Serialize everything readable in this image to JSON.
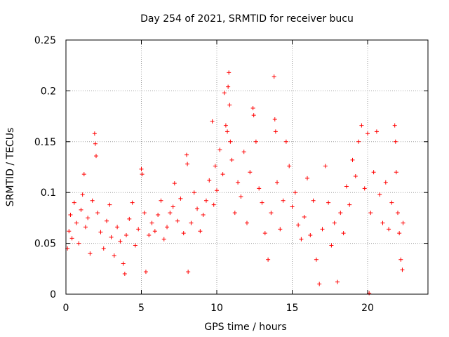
{
  "chart_data": {
    "type": "scatter",
    "title": "Day 254 of 2021, SRMTID for receiver bucu",
    "xlabel": "GPS time / hours",
    "ylabel": "SRMTID / TECUs",
    "xlim": [
      0,
      24
    ],
    "ylim": [
      0,
      0.25
    ],
    "xticks": [
      "0",
      "5",
      "10",
      "15",
      "20"
    ],
    "yticks": [
      "0",
      "0.05",
      "0.1",
      "0.15",
      "0.2",
      "0.25"
    ],
    "grid": true,
    "marker": "+",
    "color": "#ff0000",
    "series": [
      {
        "name": "SRMTID",
        "x_range": [
          0.0,
          22.4
        ],
        "points": [
          [
            0.1,
            0.045
          ],
          [
            0.2,
            0.062
          ],
          [
            0.3,
            0.078
          ],
          [
            0.4,
            0.055
          ],
          [
            0.55,
            0.09
          ],
          [
            0.7,
            0.07
          ],
          [
            0.85,
            0.05
          ],
          [
            1.0,
            0.083
          ],
          [
            1.1,
            0.098
          ],
          [
            1.2,
            0.118
          ],
          [
            1.3,
            0.066
          ],
          [
            1.45,
            0.075
          ],
          [
            1.6,
            0.04
          ],
          [
            1.75,
            0.092
          ],
          [
            1.9,
            0.158
          ],
          [
            1.95,
            0.148
          ],
          [
            2.0,
            0.136
          ],
          [
            2.1,
            0.08
          ],
          [
            2.3,
            0.061
          ],
          [
            2.5,
            0.045
          ],
          [
            2.7,
            0.072
          ],
          [
            2.9,
            0.088
          ],
          [
            3.0,
            0.056
          ],
          [
            3.2,
            0.038
          ],
          [
            3.4,
            0.066
          ],
          [
            3.6,
            0.052
          ],
          [
            3.8,
            0.03
          ],
          [
            3.9,
            0.02
          ],
          [
            4.0,
            0.058
          ],
          [
            4.2,
            0.074
          ],
          [
            4.4,
            0.09
          ],
          [
            4.6,
            0.048
          ],
          [
            4.8,
            0.064
          ],
          [
            5.0,
            0.123
          ],
          [
            5.05,
            0.118
          ],
          [
            5.2,
            0.08
          ],
          [
            5.3,
            0.022
          ],
          [
            5.5,
            0.058
          ],
          [
            5.7,
            0.07
          ],
          [
            5.9,
            0.062
          ],
          [
            6.1,
            0.078
          ],
          [
            6.3,
            0.092
          ],
          [
            6.5,
            0.054
          ],
          [
            6.7,
            0.066
          ],
          [
            6.9,
            0.08
          ],
          [
            7.1,
            0.086
          ],
          [
            7.2,
            0.109
          ],
          [
            7.4,
            0.072
          ],
          [
            7.6,
            0.094
          ],
          [
            7.8,
            0.06
          ],
          [
            8.0,
            0.137
          ],
          [
            8.05,
            0.128
          ],
          [
            8.1,
            0.022
          ],
          [
            8.3,
            0.07
          ],
          [
            8.5,
            0.1
          ],
          [
            8.7,
            0.084
          ],
          [
            8.9,
            0.062
          ],
          [
            9.1,
            0.078
          ],
          [
            9.3,
            0.092
          ],
          [
            9.5,
            0.112
          ],
          [
            9.7,
            0.17
          ],
          [
            9.8,
            0.088
          ],
          [
            9.9,
            0.126
          ],
          [
            10.0,
            0.102
          ],
          [
            10.2,
            0.142
          ],
          [
            10.4,
            0.118
          ],
          [
            10.5,
            0.198
          ],
          [
            10.6,
            0.166
          ],
          [
            10.7,
            0.16
          ],
          [
            10.75,
            0.204
          ],
          [
            10.8,
            0.218
          ],
          [
            10.85,
            0.186
          ],
          [
            10.9,
            0.15
          ],
          [
            11.0,
            0.132
          ],
          [
            11.2,
            0.08
          ],
          [
            11.4,
            0.11
          ],
          [
            11.6,
            0.096
          ],
          [
            11.8,
            0.14
          ],
          [
            12.0,
            0.07
          ],
          [
            12.2,
            0.12
          ],
          [
            12.4,
            0.183
          ],
          [
            12.45,
            0.176
          ],
          [
            12.6,
            0.15
          ],
          [
            12.8,
            0.104
          ],
          [
            13.0,
            0.09
          ],
          [
            13.2,
            0.06
          ],
          [
            13.4,
            0.034
          ],
          [
            13.6,
            0.08
          ],
          [
            13.8,
            0.214
          ],
          [
            13.85,
            0.172
          ],
          [
            13.9,
            0.16
          ],
          [
            14.0,
            0.11
          ],
          [
            14.2,
            0.064
          ],
          [
            14.4,
            0.092
          ],
          [
            14.6,
            0.15
          ],
          [
            14.8,
            0.126
          ],
          [
            15.0,
            0.086
          ],
          [
            15.2,
            0.1
          ],
          [
            15.4,
            0.068
          ],
          [
            15.6,
            0.054
          ],
          [
            15.8,
            0.076
          ],
          [
            16.0,
            0.114
          ],
          [
            16.2,
            0.058
          ],
          [
            16.4,
            0.092
          ],
          [
            16.6,
            0.034
          ],
          [
            16.8,
            0.01
          ],
          [
            17.0,
            0.064
          ],
          [
            17.2,
            0.126
          ],
          [
            17.4,
            0.09
          ],
          [
            17.6,
            0.048
          ],
          [
            17.8,
            0.07
          ],
          [
            18.0,
            0.012
          ],
          [
            18.2,
            0.08
          ],
          [
            18.4,
            0.06
          ],
          [
            18.6,
            0.106
          ],
          [
            18.8,
            0.088
          ],
          [
            19.0,
            0.132
          ],
          [
            19.2,
            0.116
          ],
          [
            19.4,
            0.15
          ],
          [
            19.6,
            0.166
          ],
          [
            19.8,
            0.104
          ],
          [
            20.0,
            0.158
          ],
          [
            20.1,
            0.001
          ],
          [
            20.2,
            0.08
          ],
          [
            20.4,
            0.12
          ],
          [
            20.6,
            0.16
          ],
          [
            20.8,
            0.098
          ],
          [
            21.0,
            0.07
          ],
          [
            21.2,
            0.11
          ],
          [
            21.4,
            0.064
          ],
          [
            21.6,
            0.09
          ],
          [
            21.8,
            0.166
          ],
          [
            21.85,
            0.15
          ],
          [
            21.9,
            0.12
          ],
          [
            22.0,
            0.08
          ],
          [
            22.1,
            0.06
          ],
          [
            22.2,
            0.034
          ],
          [
            22.3,
            0.024
          ],
          [
            22.35,
            0.07
          ]
        ]
      }
    ]
  }
}
